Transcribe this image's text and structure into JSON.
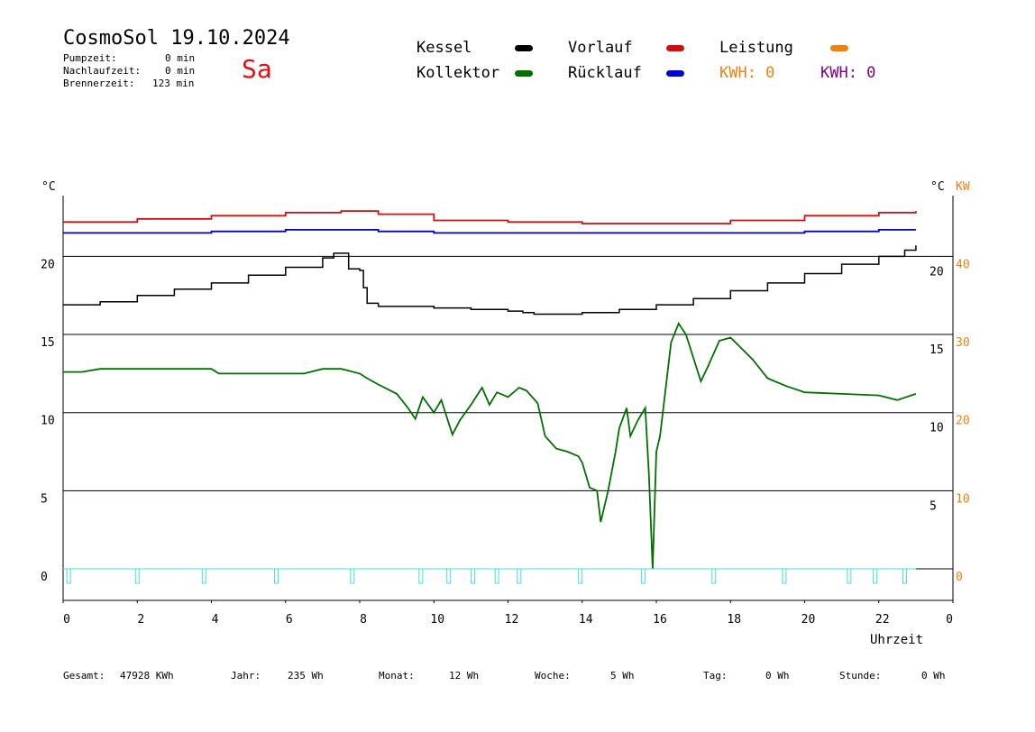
{
  "header": {
    "title": "CosmoSol 19.10.2024",
    "weekday": "Sa",
    "stats": [
      {
        "label": "Pumpzeit:",
        "value": "0 min"
      },
      {
        "label": "Nachlaufzeit:",
        "value": "0 min"
      },
      {
        "label": "Brennerzeit:",
        "value": "123 min"
      }
    ]
  },
  "legend": {
    "kessel": "Kessel",
    "kollektor": "Kollektor",
    "vorlauf": "Vorlauf",
    "ruecklauf": "Rücklauf",
    "leistung": "Leistung",
    "kwh1": "KWH: 0",
    "kwh2": "KWH: 0"
  },
  "colors": {
    "kessel": "#000000",
    "kollektor": "#007000",
    "vorlauf": "#d01010",
    "ruecklauf": "#0000d0",
    "leistung": "#f08010",
    "kwh2": "#800080",
    "pump": "#40e0e0",
    "weekday": "#e01010"
  },
  "footer": [
    {
      "label": "Gesamt:",
      "value": "47928 KWh"
    },
    {
      "label": "Jahr:",
      "value": "235 Wh"
    },
    {
      "label": "Monat:",
      "value": "12 Wh"
    },
    {
      "label": "Woche:",
      "value": "5 Wh"
    },
    {
      "label": "Tag:",
      "value": "0 Wh"
    },
    {
      "label": "Stunde:",
      "value": "0 Wh"
    }
  ],
  "chart_data": {
    "type": "line",
    "xlabel": "Uhrzeit",
    "ylabel_left": "°C",
    "ylabel_right_1": "°C",
    "ylabel_right_2": "KW",
    "xlim": [
      0,
      24
    ],
    "ylim": [
      -2,
      24.5
    ],
    "x_ticks": [
      "0",
      "2",
      "4",
      "6",
      "8",
      "10",
      "12",
      "14",
      "16",
      "18",
      "20",
      "22",
      "0"
    ],
    "y_ticks_left": [
      "0",
      "5",
      "10",
      "15",
      "20"
    ],
    "y_ticks_right": [
      "5",
      "10",
      "15",
      "20"
    ],
    "kw_ticks": [
      "0",
      "10",
      "20",
      "30",
      "40"
    ],
    "grid": "horizontal",
    "series": [
      {
        "name": "Vorlauf",
        "x": [
          0,
          2,
          4,
          6,
          7.5,
          8.5,
          10,
          12,
          14,
          16,
          18,
          20,
          22,
          23
        ],
        "y": [
          22.2,
          22.4,
          22.6,
          22.8,
          22.9,
          22.7,
          22.3,
          22.2,
          22.1,
          22.1,
          22.3,
          22.6,
          22.8,
          22.9
        ]
      },
      {
        "name": "Rücklauf",
        "x": [
          0,
          2,
          4,
          6,
          7.5,
          8.5,
          10,
          12,
          14,
          16,
          18,
          20,
          22,
          23
        ],
        "y": [
          21.5,
          21.5,
          21.6,
          21.7,
          21.7,
          21.6,
          21.5,
          21.5,
          21.5,
          21.5,
          21.5,
          21.6,
          21.7,
          21.7
        ]
      },
      {
        "name": "Kessel",
        "x": [
          0,
          1,
          2,
          3,
          4,
          5,
          6,
          7,
          7.3,
          7.45,
          7.7,
          8,
          8.1,
          8.2,
          8.5,
          9,
          10,
          11,
          12,
          12.4,
          12.7,
          13.5,
          14,
          15,
          16,
          17,
          18,
          19,
          20,
          21,
          22,
          22.7,
          23
        ],
        "y": [
          16.9,
          17.1,
          17.5,
          17.9,
          18.3,
          18.8,
          19.3,
          19.9,
          20.2,
          20.2,
          19.2,
          19.1,
          18.0,
          17.0,
          16.8,
          16.8,
          16.7,
          16.6,
          16.5,
          16.4,
          16.3,
          16.3,
          16.4,
          16.6,
          16.9,
          17.3,
          17.8,
          18.3,
          18.9,
          19.5,
          20.0,
          20.4,
          20.7
        ]
      },
      {
        "name": "Kollektor",
        "x": [
          0,
          0.5,
          1,
          2,
          3,
          4,
          4.2,
          5,
          6,
          6.5,
          7,
          7.5,
          8,
          8.2,
          8.5,
          9,
          9.3,
          9.5,
          9.7,
          10,
          10.2,
          10.5,
          10.7,
          11,
          11.3,
          11.5,
          11.7,
          12,
          12.3,
          12.5,
          12.8,
          13,
          13.3,
          13.6,
          13.9,
          14,
          14.2,
          14.4,
          14.5,
          14.7,
          14.9,
          15,
          15.2,
          15.3,
          15.5,
          15.7,
          15.8,
          15.9,
          16,
          16.1,
          16.3,
          16.4,
          16.6,
          16.8,
          17,
          17.2,
          17.4,
          17.7,
          18,
          18.3,
          18.6,
          19,
          19.5,
          20,
          21,
          22,
          22.5,
          23
        ],
        "y": [
          12.6,
          12.6,
          12.8,
          12.8,
          12.8,
          12.8,
          12.5,
          12.5,
          12.5,
          12.5,
          12.8,
          12.8,
          12.5,
          12.2,
          11.8,
          11.2,
          10.3,
          9.6,
          11.0,
          10.0,
          10.8,
          8.6,
          9.5,
          10.5,
          11.6,
          10.5,
          11.3,
          11.0,
          11.6,
          11.4,
          10.6,
          8.5,
          7.7,
          7.5,
          7.2,
          6.8,
          5.2,
          5.0,
          3.0,
          5.0,
          7.5,
          9.0,
          10.3,
          8.5,
          9.5,
          10.3,
          6.0,
          0.0,
          7.5,
          8.5,
          12.5,
          14.5,
          15.7,
          15.0,
          13.5,
          12.0,
          13.0,
          14.6,
          14.8,
          14.1,
          13.4,
          12.2,
          11.7,
          11.3,
          11.2,
          11.1,
          10.8,
          11.2
        ]
      }
    ],
    "pump_pulses_hours": [
      0.15,
      2.0,
      3.8,
      5.75,
      7.8,
      9.65,
      10.4,
      11.05,
      11.7,
      12.3,
      13.95,
      15.65,
      17.55,
      19.45,
      21.2,
      21.9,
      22.7
    ]
  }
}
